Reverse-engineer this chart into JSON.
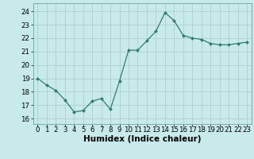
{
  "x": [
    0,
    1,
    2,
    3,
    4,
    5,
    6,
    7,
    8,
    9,
    10,
    11,
    12,
    13,
    14,
    15,
    16,
    17,
    18,
    19,
    20,
    21,
    22,
    23
  ],
  "y": [
    19.0,
    18.5,
    18.1,
    17.4,
    16.5,
    16.6,
    17.3,
    17.5,
    16.7,
    18.8,
    21.1,
    21.1,
    21.8,
    22.5,
    23.9,
    23.3,
    22.2,
    22.0,
    21.9,
    21.6,
    21.5,
    21.5,
    21.6,
    21.7
  ],
  "line_color": "#2e7d6e",
  "marker": "D",
  "marker_size": 2.0,
  "bg_color": "#c8eaea",
  "grid_color": "#b0cfcf",
  "xlabel": "Humidex (Indice chaleur)",
  "xlabel_fontsize": 7.5,
  "yticks": [
    16,
    17,
    18,
    19,
    20,
    21,
    22,
    23,
    24
  ],
  "ylim": [
    15.6,
    24.6
  ],
  "xlim": [
    -0.5,
    23.5
  ],
  "xtick_labels": [
    "0",
    "1",
    "2",
    "3",
    "4",
    "5",
    "6",
    "7",
    "8",
    "9",
    "10",
    "11",
    "12",
    "13",
    "14",
    "15",
    "16",
    "17",
    "18",
    "19",
    "20",
    "21",
    "22",
    "23"
  ],
  "tick_fontsize": 6.2
}
